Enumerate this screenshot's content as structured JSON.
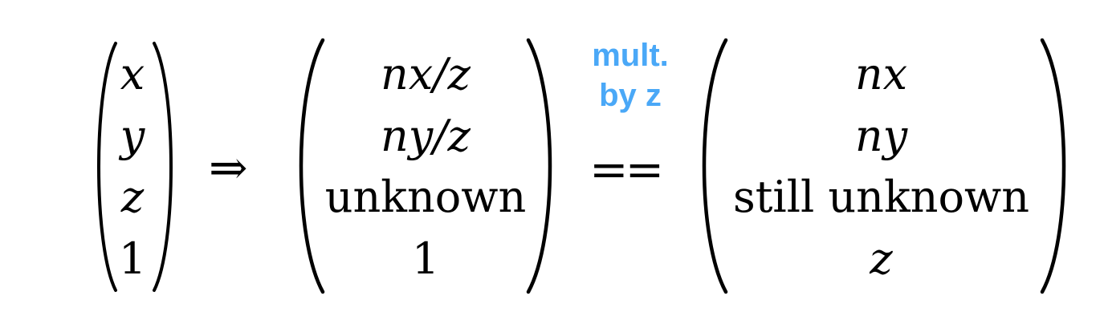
{
  "vector_in": {
    "x": "x",
    "y": "y",
    "z": "z",
    "w": "1"
  },
  "implies_symbol": "⇒",
  "vector_mid": {
    "r1": "nx/z",
    "r2": "ny/z",
    "r3": "unknown",
    "r4": "1"
  },
  "annotation": {
    "line1": "mult.",
    "line2": "by z",
    "color": "#4aa8f7"
  },
  "equality_symbol": "==",
  "vector_out": {
    "r1": "nx",
    "r2": "ny",
    "r3": "still unknown",
    "r4": "z"
  }
}
